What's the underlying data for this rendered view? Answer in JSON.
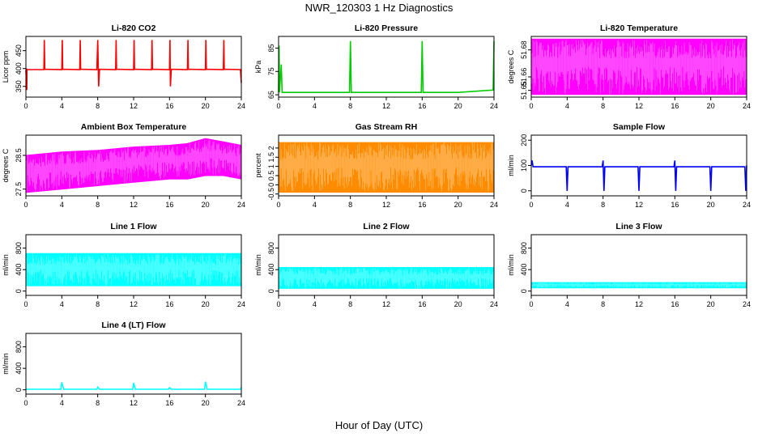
{
  "figure": {
    "title": "NWR_120303  1 Hz Diagnostics",
    "xlabel": "Hour of Day (UTC)"
  },
  "chart_data": [
    {
      "id": "co2",
      "type": "line",
      "title": "Li-820 CO2",
      "ylabel": "Licor ppm",
      "color": "#ff0000",
      "xlim": [
        0,
        24
      ],
      "ylim": [
        320,
        490
      ],
      "xticks": [
        0,
        4,
        8,
        12,
        16,
        20,
        24
      ],
      "yticks": [
        350,
        400,
        450
      ],
      "series": [
        {
          "x": [
            0,
            0.1,
            0.12,
            0.2,
            2,
            2.05,
            2.1,
            4,
            4.05,
            4.1,
            6,
            6.05,
            6.1,
            7.9,
            8,
            8.1,
            8.2,
            10,
            10.05,
            10.1,
            12,
            12.05,
            12.1,
            14,
            14.05,
            14.1,
            16,
            16.05,
            16.1,
            16.2,
            18,
            18.05,
            18.1,
            20,
            20.05,
            20.1,
            22,
            22.05,
            22.1,
            23.9,
            24
          ],
          "y": [
            395,
            340,
            398,
            397,
            397,
            480,
            398,
            397,
            480,
            398,
            397,
            480,
            398,
            397,
            480,
            350,
            398,
            397,
            480,
            398,
            397,
            480,
            398,
            397,
            480,
            398,
            397,
            480,
            350,
            398,
            397,
            480,
            398,
            397,
            480,
            398,
            397,
            480,
            398,
            397,
            360
          ]
        }
      ]
    },
    {
      "id": "pressure",
      "type": "line",
      "title": "Li-820 Pressure",
      "ylabel": "kPa",
      "color": "#00cc00",
      "xlim": [
        0,
        24
      ],
      "ylim": [
        64,
        90
      ],
      "xticks": [
        0,
        4,
        8,
        12,
        16,
        20,
        24
      ],
      "yticks": [
        65,
        75,
        85
      ],
      "series": [
        {
          "x": [
            0,
            0.05,
            0.1,
            0.3,
            0.4,
            4,
            7.9,
            8,
            8.1,
            12,
            15.9,
            16,
            16.1,
            20,
            23.9,
            24
          ],
          "y": [
            66,
            86,
            66,
            78,
            66,
            66,
            66,
            88,
            66,
            66,
            66,
            88,
            66,
            66,
            67,
            88
          ]
        }
      ]
    },
    {
      "id": "li820temp",
      "type": "area",
      "title": "Li-820 Temperature",
      "ylabel": "degrees C",
      "color": "#ff00ff",
      "xlim": [
        0,
        24
      ],
      "ylim": [
        51.645,
        51.69
      ],
      "xticks": [
        0,
        4,
        8,
        12,
        16,
        20,
        24
      ],
      "yticks": [
        51.65,
        51.66,
        51.68
      ],
      "series": [
        {
          "x": [
            0,
            24
          ],
          "y_min": [
            51.647,
            51.647
          ],
          "y_max": [
            51.688,
            51.688
          ]
        }
      ]
    },
    {
      "id": "boxtemp",
      "type": "area",
      "title": "Ambient Box Temperature",
      "ylabel": "degrees C",
      "color": "#ff00ff",
      "xlim": [
        0,
        24
      ],
      "ylim": [
        27.3,
        29.1
      ],
      "xticks": [
        0,
        4,
        8,
        12,
        16,
        20,
        24
      ],
      "yticks": [
        27.5,
        28.5
      ],
      "series": [
        {
          "x": [
            0,
            4,
            8,
            12,
            16,
            18,
            20,
            22,
            24
          ],
          "y_min": [
            27.4,
            27.5,
            27.6,
            27.7,
            27.8,
            27.8,
            27.9,
            27.9,
            27.8
          ],
          "y_max": [
            28.5,
            28.6,
            28.65,
            28.75,
            28.8,
            28.85,
            29.0,
            28.9,
            28.8
          ]
        }
      ]
    },
    {
      "id": "rh",
      "type": "area",
      "title": "Gas Stream RH",
      "ylabel": "percent",
      "color": "#ff8c00",
      "xlim": [
        0,
        24
      ],
      "ylim": [
        -0.6,
        2.7
      ],
      "xticks": [
        0,
        4,
        8,
        12,
        16,
        20,
        24
      ],
      "yticks": [
        -0.5,
        0.0,
        0.5,
        1.0,
        1.5,
        2.0
      ],
      "series": [
        {
          "x": [
            0,
            24
          ],
          "y_min": [
            -0.4,
            -0.4
          ],
          "y_max": [
            2.3,
            2.3
          ]
        }
      ]
    },
    {
      "id": "sampleflow",
      "type": "line",
      "title": "Sample Flow",
      "ylabel": "ml/min",
      "color": "#0000ff",
      "xlim": [
        0,
        24
      ],
      "ylim": [
        -20,
        220
      ],
      "xticks": [
        0,
        4,
        8,
        12,
        16,
        20,
        24
      ],
      "yticks": [
        0,
        100,
        200
      ],
      "series": [
        {
          "x": [
            0,
            0.1,
            0.2,
            3.9,
            4,
            4.1,
            7.9,
            8,
            8.1,
            8.2,
            11.9,
            12,
            12.1,
            15.9,
            16,
            16.1,
            16.2,
            19.9,
            20,
            20.1,
            23.8,
            23.9,
            24
          ],
          "y": [
            100,
            120,
            95,
            95,
            0,
            95,
            95,
            120,
            0,
            95,
            95,
            0,
            95,
            95,
            120,
            0,
            95,
            95,
            0,
            95,
            95,
            0,
            100
          ]
        }
      ]
    },
    {
      "id": "line1",
      "type": "area",
      "title": "Line 1 Flow",
      "ylabel": "ml/min",
      "color": "#00ffff",
      "xlim": [
        0,
        24
      ],
      "ylim": [
        -80,
        1050
      ],
      "xticks": [
        0,
        4,
        8,
        12,
        16,
        20,
        24
      ],
      "yticks": [
        0,
        400,
        800
      ],
      "series": [
        {
          "x": [
            0,
            24
          ],
          "y_min": [
            100,
            100
          ],
          "y_max": [
            700,
            700
          ]
        }
      ]
    },
    {
      "id": "line2",
      "type": "area",
      "title": "Line 2 Flow",
      "ylabel": "ml/min",
      "color": "#00ffff",
      "xlim": [
        0,
        24
      ],
      "ylim": [
        -80,
        1050
      ],
      "xticks": [
        0,
        4,
        8,
        12,
        16,
        20,
        24
      ],
      "yticks": [
        0,
        400,
        800
      ],
      "series": [
        {
          "x": [
            0,
            24
          ],
          "y_min": [
            50,
            50
          ],
          "y_max": [
            440,
            440
          ]
        }
      ]
    },
    {
      "id": "line3",
      "type": "area",
      "title": "Line 3 Flow",
      "ylabel": "ml/min",
      "color": "#00ffff",
      "xlim": [
        0,
        24
      ],
      "ylim": [
        -80,
        1050
      ],
      "xticks": [
        0,
        4,
        8,
        12,
        16,
        20,
        24
      ],
      "yticks": [
        0,
        400,
        800
      ],
      "series": [
        {
          "x": [
            0,
            24
          ],
          "y_min": [
            60,
            60
          ],
          "y_max": [
            160,
            160
          ]
        }
      ]
    },
    {
      "id": "line4",
      "type": "line",
      "title": "Line 4 (LT) Flow",
      "ylabel": "ml/min",
      "color": "#00ffff",
      "xlim": [
        0,
        24
      ],
      "ylim": [
        -80,
        1050
      ],
      "xticks": [
        0,
        4,
        8,
        12,
        16,
        20,
        24
      ],
      "yticks": [
        0,
        400,
        800
      ],
      "series": [
        {
          "x": [
            0,
            3.9,
            4,
            4.2,
            7.9,
            8,
            8.2,
            11.9,
            12,
            12.2,
            15.9,
            16,
            16.2,
            19.9,
            20,
            20.2,
            23.9,
            24
          ],
          "y": [
            10,
            10,
            140,
            10,
            10,
            50,
            10,
            10,
            130,
            10,
            10,
            40,
            10,
            10,
            150,
            10,
            10,
            50
          ]
        }
      ]
    }
  ]
}
